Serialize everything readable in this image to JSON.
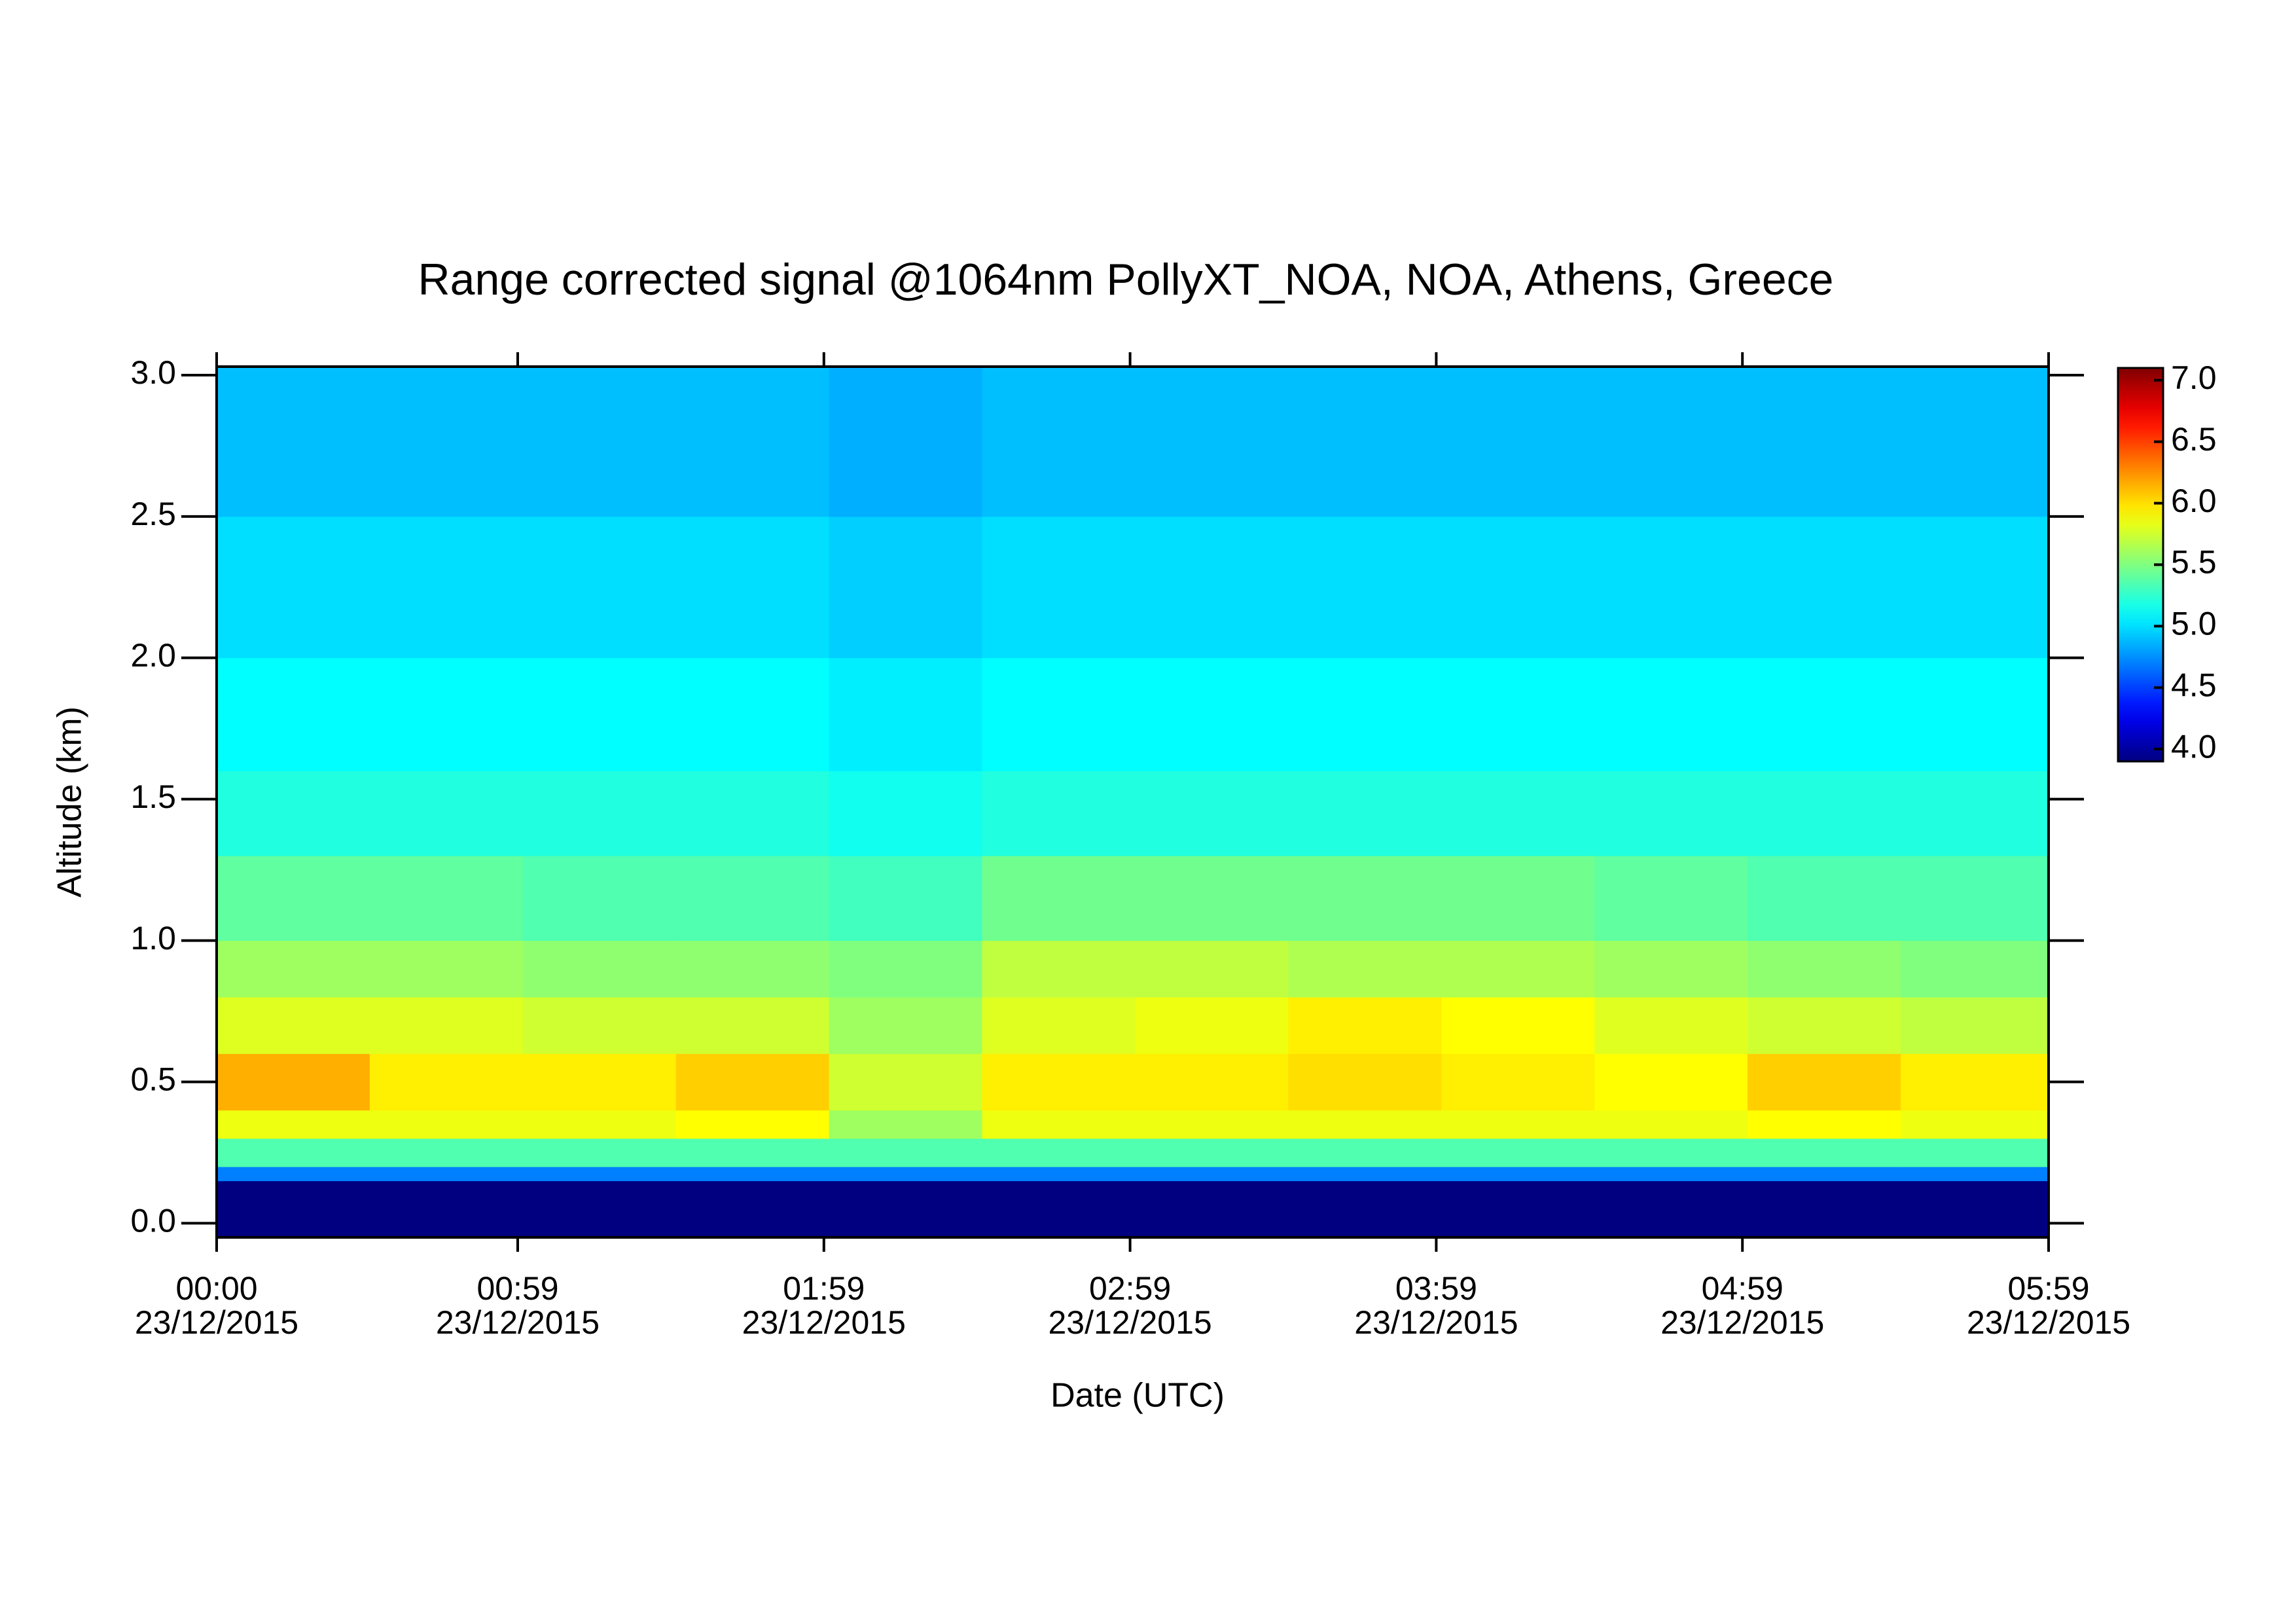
{
  "chart_data": {
    "type": "heatmap",
    "title": "Range corrected signal @1064nm  PollyXT_NOA, NOA, Athens, Greece",
    "x_label": "Date (UTC)",
    "y_label": "Altitude (km)",
    "xlim": [
      "2015-12-23T00:00",
      "2015-12-23T05:59"
    ],
    "xticks": [
      {
        "value": "2015-12-23T00:00",
        "label": [
          "00:00",
          "23/12/2015"
        ]
      },
      {
        "value": "2015-12-23T00:59",
        "label": [
          "00:59",
          "23/12/2015"
        ]
      },
      {
        "value": "2015-12-23T01:59",
        "label": [
          "01:59",
          "23/12/2015"
        ]
      },
      {
        "value": "2015-12-23T02:59",
        "label": [
          "02:59",
          "23/12/2015"
        ]
      },
      {
        "value": "2015-12-23T03:59",
        "label": [
          "03:59",
          "23/12/2015"
        ]
      },
      {
        "value": "2015-12-23T04:59",
        "label": [
          "04:59",
          "23/12/2015"
        ]
      },
      {
        "value": "2015-12-23T05:59",
        "label": [
          "05:59",
          "23/12/2015"
        ]
      }
    ],
    "ylim": [
      -0.05,
      3.03
    ],
    "yticks": [
      {
        "value": 0,
        "label": "0.0"
      },
      0.5,
      {
        "value": 1,
        "label": "1.0"
      },
      1.5,
      {
        "value": 2,
        "label": "2.0"
      },
      2.5,
      {
        "value": 3,
        "label": "3.0"
      }
    ],
    "x_edges": [
      "2015-12-23T00:00",
      "2015-12-23T00:30",
      "2015-12-23T01:00",
      "2015-12-23T01:30",
      "2015-12-23T02:00",
      "2015-12-23T02:30",
      "2015-12-23T03:00",
      "2015-12-23T03:30",
      "2015-12-23T04:00",
      "2015-12-23T04:30",
      "2015-12-23T05:00",
      "2015-12-23T05:30",
      "2015-12-23T05:59"
    ],
    "y_edges": [
      -0.05,
      0.15,
      0.2,
      0.3,
      0.4,
      0.6,
      0.8,
      1.0,
      1.3,
      1.6,
      2.0,
      2.5,
      3.03
    ],
    "z": [
      [
        3.9,
        3.9,
        3.9,
        3.9,
        3.9,
        3.9,
        3.9,
        3.9,
        3.9,
        3.9,
        3.9,
        3.9
      ],
      [
        4.7,
        4.7,
        4.7,
        4.7,
        4.7,
        4.7,
        4.7,
        4.7,
        4.7,
        4.7,
        4.7,
        4.7
      ],
      [
        5.35,
        5.35,
        5.35,
        5.35,
        5.35,
        5.35,
        5.35,
        5.35,
        5.35,
        5.35,
        5.35,
        5.35
      ],
      [
        5.85,
        5.85,
        5.85,
        5.9,
        5.6,
        5.85,
        5.85,
        5.85,
        5.85,
        5.85,
        5.9,
        5.85
      ],
      [
        6.15,
        5.95,
        5.95,
        6.05,
        5.75,
        5.95,
        5.95,
        6.0,
        5.95,
        5.9,
        6.05,
        5.95
      ],
      [
        5.8,
        5.8,
        5.75,
        5.75,
        5.6,
        5.8,
        5.85,
        5.95,
        5.9,
        5.8,
        5.75,
        5.7
      ],
      [
        5.6,
        5.6,
        5.55,
        5.55,
        5.5,
        5.7,
        5.7,
        5.65,
        5.65,
        5.6,
        5.55,
        5.5
      ],
      [
        5.4,
        5.4,
        5.35,
        5.35,
        5.3,
        5.45,
        5.45,
        5.45,
        5.45,
        5.4,
        5.35,
        5.35
      ],
      [
        5.2,
        5.2,
        5.2,
        5.2,
        5.15,
        5.2,
        5.2,
        5.2,
        5.2,
        5.2,
        5.2,
        5.2
      ],
      [
        5.1,
        5.1,
        5.1,
        5.1,
        5.05,
        5.1,
        5.1,
        5.1,
        5.1,
        5.1,
        5.1,
        5.1
      ],
      [
        5.0,
        5.0,
        5.0,
        5.0,
        4.95,
        5.0,
        5.0,
        5.0,
        5.0,
        5.0,
        5.0,
        5.0
      ],
      [
        4.9,
        4.9,
        4.9,
        4.9,
        4.85,
        4.9,
        4.9,
        4.9,
        4.9,
        4.9,
        4.9,
        4.9
      ]
    ],
    "zlim": [
      3.9,
      7.1
    ],
    "zticks": [
      {
        "value": 4,
        "label": "4.0"
      },
      4.5,
      {
        "value": 5,
        "label": "5.0"
      },
      5.5,
      {
        "value": 6,
        "label": "6.0"
      },
      6.5,
      {
        "value": 7,
        "label": "7.0"
      }
    ],
    "colormap": "jet"
  }
}
